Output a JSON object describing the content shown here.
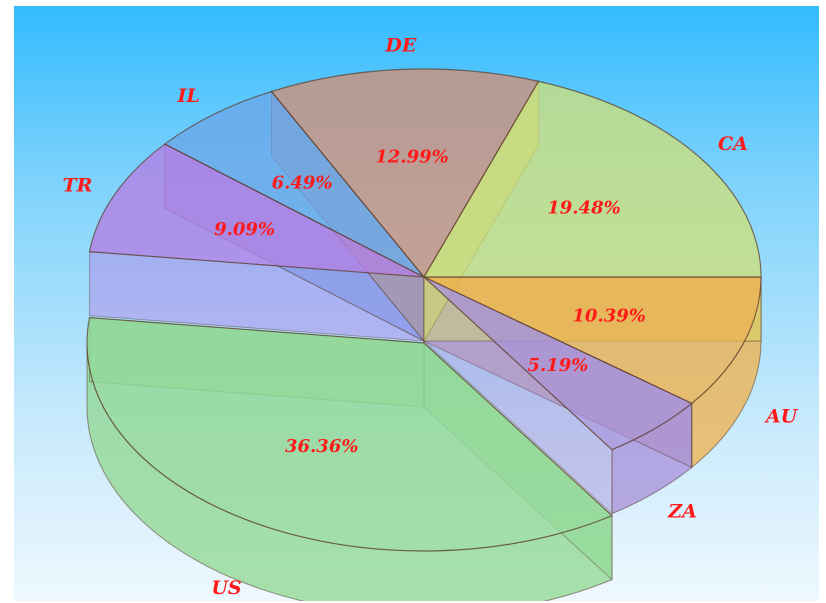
{
  "chart_data": {
    "type": "pie",
    "style": "3d-exploded-transparent",
    "categories": [
      "AU",
      "CA",
      "DE",
      "IL",
      "TR",
      "US",
      "ZA"
    ],
    "values": [
      10.39,
      19.48,
      12.99,
      6.49,
      9.09,
      36.36,
      5.19
    ],
    "value_labels": [
      "10.39%",
      "19.48%",
      "12.99%",
      "6.49%",
      "9.09%",
      "36.36%",
      "5.19%"
    ],
    "colors": [
      "#f0b04a",
      "#cde07a",
      "#cf8f78",
      "#6aa7e8",
      "#b47fe4",
      "#8fd78f",
      "#a78fd8"
    ],
    "label_color": "#ff1a1a",
    "background_gradient": [
      "#33bbff",
      "#eef8fe"
    ],
    "legend": "none"
  }
}
